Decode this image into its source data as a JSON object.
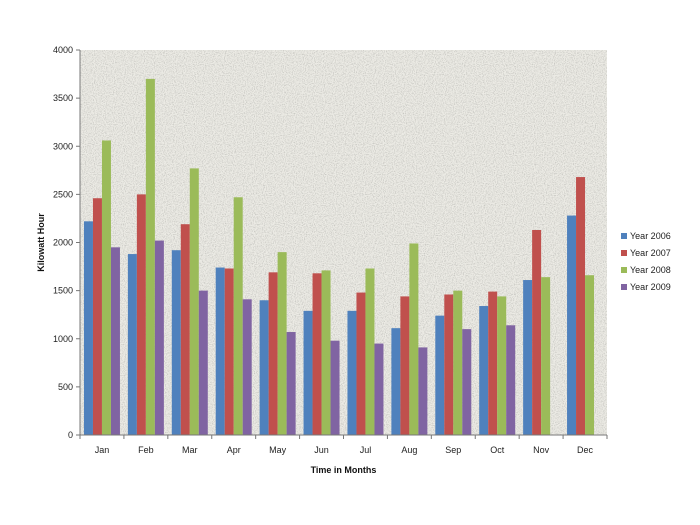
{
  "chart_data": {
    "type": "bar",
    "title": "",
    "xlabel": "Time in Months",
    "ylabel": "Kilowatt Hour",
    "ylim": [
      0,
      4000
    ],
    "yticks": [
      0,
      500,
      1000,
      1500,
      2000,
      2500,
      3000,
      3500,
      4000
    ],
    "grid": false,
    "legend_position": "right",
    "categories": [
      "Jan",
      "Feb",
      "Mar",
      "Apr",
      "May",
      "Jun",
      "Jul",
      "Aug",
      "Sep",
      "Oct",
      "Nov",
      "Dec"
    ],
    "series": [
      {
        "name": "Year 2006",
        "color": "#4f81bd",
        "values": [
          2220,
          1880,
          1920,
          1740,
          1400,
          1290,
          1290,
          1110,
          1240,
          1340,
          1610,
          2280
        ]
      },
      {
        "name": "Year 2007",
        "color": "#c0504d",
        "values": [
          2460,
          2500,
          2190,
          1730,
          1690,
          1680,
          1480,
          1440,
          1460,
          1490,
          2130,
          2680
        ]
      },
      {
        "name": "Year 2008",
        "color": "#9bbb59",
        "values": [
          3060,
          3700,
          2770,
          2470,
          1900,
          1710,
          1730,
          1990,
          1500,
          1440,
          1640,
          1660
        ]
      },
      {
        "name": "Year 2009",
        "color": "#8064a2",
        "values": [
          1950,
          2020,
          1500,
          1410,
          1070,
          980,
          950,
          910,
          1100,
          1140,
          null,
          null
        ]
      }
    ]
  }
}
